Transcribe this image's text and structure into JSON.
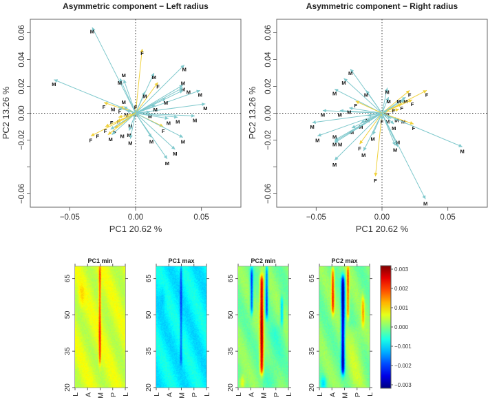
{
  "colors": {
    "male": "#7ec8cc",
    "female": "#f0d13a",
    "axis": "#555555"
  },
  "chart_data": [
    {
      "type": "scatter",
      "title": "Asymmetric component − Left radius",
      "xlabel": "PC1 20.62 %",
      "ylabel": "PC2 13.26 %",
      "xlim": [
        -0.08,
        0.08
      ],
      "ylim": [
        -0.07,
        0.07
      ],
      "xticks": [
        -0.05,
        0.0,
        0.05
      ],
      "xtick_labels": [
        "−0.05",
        "0.00",
        "0.05"
      ],
      "yticks": [
        -0.06,
        -0.04,
        -0.02,
        0.0,
        0.02,
        0.04,
        0.06
      ],
      "ytick_labels": [
        "−0.06",
        "",
        "−0.02",
        "0.00",
        "0.02",
        "0.04",
        "0.06"
      ],
      "reference_lines": "dotted at x=0 and y=0",
      "style": "arrows from origin",
      "points": [
        {
          "x": -0.033,
          "y": 0.064,
          "g": "M"
        },
        {
          "x": 0.005,
          "y": 0.048,
          "g": "F"
        },
        {
          "x": -0.062,
          "y": 0.025,
          "g": "M"
        },
        {
          "x": -0.012,
          "y": 0.026,
          "g": "M"
        },
        {
          "x": -0.009,
          "y": 0.025,
          "g": "M"
        },
        {
          "x": 0.014,
          "y": 0.03,
          "g": "M"
        },
        {
          "x": 0.017,
          "y": 0.023,
          "g": "F"
        },
        {
          "x": 0.037,
          "y": 0.036,
          "g": "M"
        },
        {
          "x": 0.036,
          "y": 0.021,
          "g": "M"
        },
        {
          "x": 0.036,
          "y": 0.019,
          "g": "M"
        },
        {
          "x": 0.036,
          "y": 0.017,
          "g": "M"
        },
        {
          "x": 0.049,
          "y": 0.017,
          "g": "M"
        },
        {
          "x": 0.007,
          "y": 0.016,
          "g": "M"
        },
        {
          "x": 0.023,
          "y": 0.011,
          "g": "M"
        },
        {
          "x": 0.053,
          "y": 0.007,
          "g": "M"
        },
        {
          "x": 0.015,
          "y": 0.006,
          "g": "M"
        },
        {
          "x": -0.024,
          "y": 0.008,
          "g": "F"
        },
        {
          "x": -0.012,
          "y": 0.005,
          "g": "F"
        },
        {
          "x": -0.009,
          "y": 0.005,
          "g": "M"
        },
        {
          "x": -0.013,
          "y": 0.004,
          "g": "M"
        },
        {
          "x": -0.007,
          "y": 0.002,
          "g": "M"
        },
        {
          "x": 0.0,
          "y": 0.002,
          "g": "M"
        },
        {
          "x": 0.0,
          "y": 0.001,
          "g": "F"
        },
        {
          "x": 0.011,
          "y": 0.001,
          "g": "M"
        },
        {
          "x": 0.045,
          "y": -0.002,
          "g": "M"
        },
        {
          "x": 0.032,
          "y": -0.003,
          "g": "M"
        },
        {
          "x": 0.025,
          "y": -0.004,
          "g": "M"
        },
        {
          "x": -0.013,
          "y": -0.003,
          "g": "F"
        },
        {
          "x": -0.014,
          "y": -0.006,
          "g": "F"
        },
        {
          "x": -0.004,
          "y": -0.002,
          "g": "M"
        },
        {
          "x": 0.021,
          "y": -0.01,
          "g": "F"
        },
        {
          "x": -0.023,
          "y": -0.01,
          "g": "F"
        },
        {
          "x": -0.016,
          "y": -0.011,
          "g": "F"
        },
        {
          "x": -0.019,
          "y": -0.012,
          "g": "M"
        },
        {
          "x": -0.021,
          "y": -0.016,
          "g": "F"
        },
        {
          "x": -0.018,
          "y": -0.016,
          "g": "M"
        },
        {
          "x": -0.034,
          "y": -0.017,
          "g": "F"
        },
        {
          "x": -0.005,
          "y": -0.013,
          "g": "M"
        },
        {
          "x": -0.004,
          "y": -0.019,
          "g": "M"
        },
        {
          "x": 0.012,
          "y": -0.018,
          "g": "M"
        },
        {
          "x": 0.036,
          "y": -0.018,
          "g": "M"
        },
        {
          "x": 0.03,
          "y": -0.027,
          "g": "M"
        },
        {
          "x": 0.024,
          "y": -0.034,
          "g": "M"
        }
      ]
    },
    {
      "type": "scatter",
      "title": "Asymmetric component − Right radius",
      "xlabel": "PC1 20.62 %",
      "ylabel": "PC2 13.26 %",
      "xlim": [
        -0.08,
        0.08
      ],
      "ylim": [
        -0.07,
        0.07
      ],
      "xticks": [
        -0.05,
        0.0,
        0.05
      ],
      "xtick_labels": [
        "−0.05",
        "0.00",
        "0.05"
      ],
      "yticks": [
        -0.06,
        -0.04,
        -0.02,
        0.0,
        0.02,
        0.04,
        0.06
      ],
      "ytick_labels": [
        "−0.06",
        "",
        "−0.02",
        "0.00",
        "0.02",
        "0.04",
        "0.06"
      ],
      "reference_lines": "dotted at x=0 and y=0",
      "style": "arrows from origin",
      "points": [
        {
          "x": -0.024,
          "y": 0.033,
          "g": "M"
        },
        {
          "x": -0.029,
          "y": 0.026,
          "g": "M"
        },
        {
          "x": -0.036,
          "y": 0.018,
          "g": "M"
        },
        {
          "x": -0.012,
          "y": 0.017,
          "g": "M"
        },
        {
          "x": 0.004,
          "y": 0.019,
          "g": "M"
        },
        {
          "x": 0.005,
          "y": 0.012,
          "g": "M"
        },
        {
          "x": 0.021,
          "y": 0.017,
          "g": "F"
        },
        {
          "x": 0.034,
          "y": 0.017,
          "g": "F"
        },
        {
          "x": 0.018,
          "y": 0.012,
          "g": "M"
        },
        {
          "x": 0.023,
          "y": 0.01,
          "g": "F"
        },
        {
          "x": 0.017,
          "y": 0.01,
          "g": "M"
        },
        {
          "x": 0.015,
          "y": 0.007,
          "g": "F"
        },
        {
          "x": 0.013,
          "y": 0.003,
          "g": "F"
        },
        {
          "x": -0.02,
          "y": 0.009,
          "g": "F"
        },
        {
          "x": -0.045,
          "y": 0.002,
          "g": "M"
        },
        {
          "x": -0.032,
          "y": 0.002,
          "g": "M"
        },
        {
          "x": -0.025,
          "y": 0.004,
          "g": "M"
        },
        {
          "x": 0.004,
          "y": 0.002,
          "g": "M"
        },
        {
          "x": -0.011,
          "y": -0.002,
          "g": "M"
        },
        {
          "x": -0.053,
          "y": -0.007,
          "g": "M"
        },
        {
          "x": -0.016,
          "y": -0.007,
          "g": "M"
        },
        {
          "x": -0.023,
          "y": -0.011,
          "g": "M"
        },
        {
          "x": -0.049,
          "y": -0.017,
          "g": "M"
        },
        {
          "x": -0.036,
          "y": -0.02,
          "g": "M"
        },
        {
          "x": -0.036,
          "y": -0.021,
          "g": "M"
        },
        {
          "x": -0.036,
          "y": -0.022,
          "g": "M"
        },
        {
          "x": -0.007,
          "y": -0.016,
          "g": "M"
        },
        {
          "x": -0.017,
          "y": -0.023,
          "g": "F"
        },
        {
          "x": -0.014,
          "y": -0.028,
          "g": "M"
        },
        {
          "x": -0.036,
          "y": -0.035,
          "g": "M"
        },
        {
          "x": -0.005,
          "y": -0.047,
          "g": "F"
        },
        {
          "x": 0.0,
          "y": -0.003,
          "g": "F"
        },
        {
          "x": 0.0,
          "y": -0.005,
          "g": "M"
        },
        {
          "x": 0.007,
          "y": -0.004,
          "g": "M"
        },
        {
          "x": 0.009,
          "y": -0.008,
          "g": "M"
        },
        {
          "x": 0.012,
          "y": -0.005,
          "g": "M"
        },
        {
          "x": 0.024,
          "y": -0.008,
          "g": "F"
        },
        {
          "x": 0.01,
          "y": -0.024,
          "g": "M"
        },
        {
          "x": 0.012,
          "y": -0.025,
          "g": "M"
        },
        {
          "x": 0.061,
          "y": -0.025,
          "g": "M"
        },
        {
          "x": 0.033,
          "y": -0.064,
          "g": "M"
        }
      ]
    },
    {
      "type": "heatmap",
      "panels": [
        {
          "title": "PC1 min",
          "background": 0.0005,
          "bands": [
            {
              "x": 1.95,
              "y": [
                30,
                70
              ],
              "sx": 0.06,
              "v": 0.0015
            },
            {
              "x": 0.5,
              "y": [
                54,
                62
              ],
              "sx": 0.15,
              "v": 0.0004
            }
          ]
        },
        {
          "title": "PC1 max",
          "background": -0.0008,
          "bands": [
            {
              "x": 1.95,
              "y": [
                30,
                70
              ],
              "sx": 0.06,
              "v": -0.001
            },
            {
              "x": 0.5,
              "y": [
                54,
                62
              ],
              "sx": 0.15,
              "v": -0.0003
            }
          ]
        },
        {
          "title": "PC2 min",
          "background": 0.0,
          "bands": [
            {
              "x": 1.05,
              "y": [
                51,
                69
              ],
              "sx": 0.08,
              "v": -0.002
            },
            {
              "x": 1.85,
              "y": [
                26,
                66
              ],
              "sx": 0.1,
              "v": 0.0028
            },
            {
              "x": 2.25,
              "y": [
                49,
                70
              ],
              "sx": 0.07,
              "v": -0.0018
            },
            {
              "x": 3.45,
              "y": [
                46,
                57
              ],
              "sx": 0.08,
              "v": -0.0012
            },
            {
              "x": 0.3,
              "y": [
                20,
                24
              ],
              "sx": 0.15,
              "v": 0.001
            },
            {
              "x": 2.8,
              "y": [
                20,
                45
              ],
              "sx": 0.5,
              "v": -0.0003
            }
          ]
        },
        {
          "title": "PC2 max",
          "background": 0.0,
          "bands": [
            {
              "x": 1.05,
              "y": [
                51,
                69
              ],
              "sx": 0.08,
              "v": 0.002
            },
            {
              "x": 1.85,
              "y": [
                26,
                66
              ],
              "sx": 0.1,
              "v": -0.0028
            },
            {
              "x": 2.25,
              "y": [
                49,
                70
              ],
              "sx": 0.07,
              "v": 0.0018
            },
            {
              "x": 3.45,
              "y": [
                46,
                57
              ],
              "sx": 0.08,
              "v": 0.0012
            },
            {
              "x": 0.3,
              "y": [
                20,
                24
              ],
              "sx": 0.15,
              "v": -0.001
            },
            {
              "x": 2.8,
              "y": [
                20,
                45
              ],
              "sx": 0.5,
              "v": 0.0003
            }
          ]
        }
      ],
      "xlim": [
        0,
        4
      ],
      "xticks": [
        0,
        1,
        2,
        3,
        4
      ],
      "xtick_labels": [
        "L",
        "A",
        "M",
        "P",
        "L"
      ],
      "ylim": [
        20,
        70
      ],
      "yticks": [
        20,
        35,
        50,
        65
      ],
      "ytick_labels": [
        "20",
        "35",
        "50",
        "65"
      ],
      "colorbar": {
        "range": [
          -0.003,
          0.003
        ],
        "colormap": "jet",
        "ticks": [
          0.003,
          0.002,
          0.001,
          0.0,
          -0.001,
          -0.002,
          -0.003
        ],
        "tick_labels": [
          "0.003",
          "0.002",
          "0.001",
          "0.000",
          "−0.001",
          "−0.002",
          "−0.003"
        ]
      }
    }
  ]
}
